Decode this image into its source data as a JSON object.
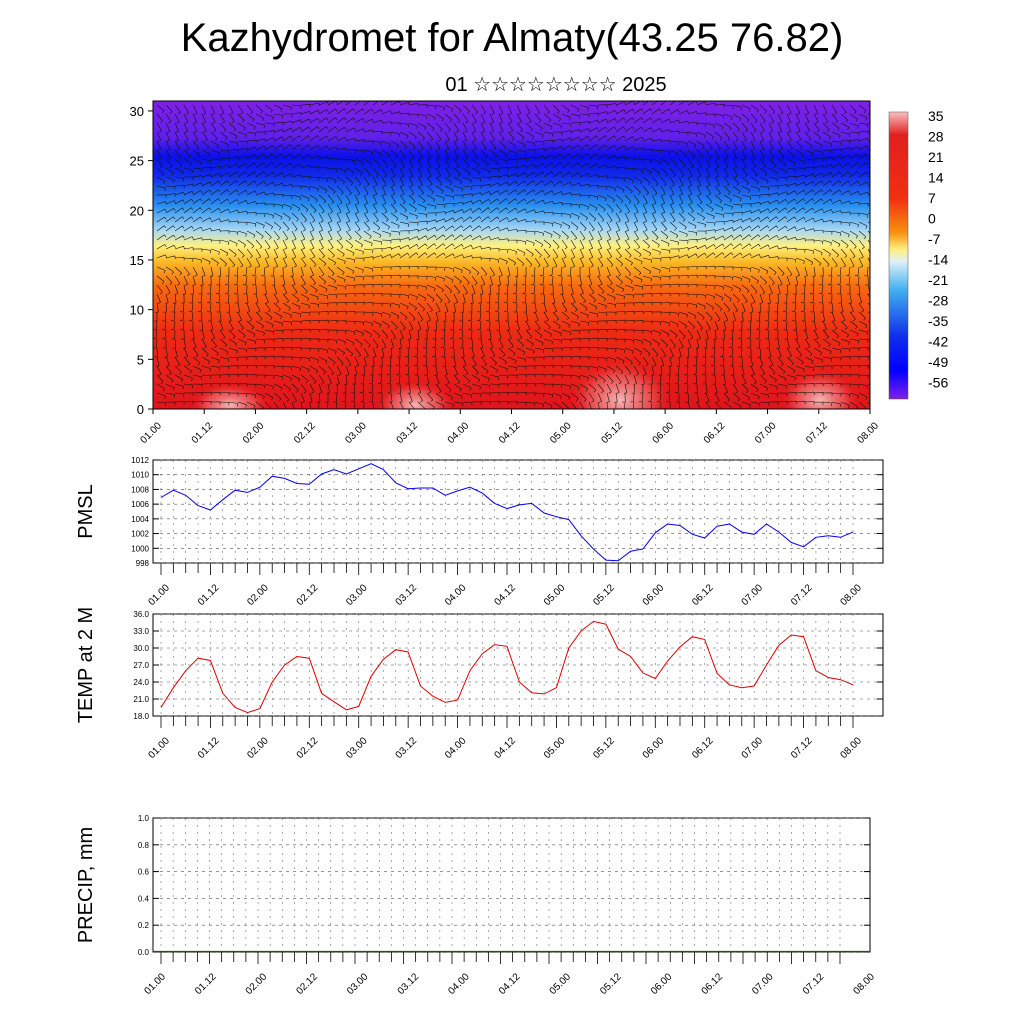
{
  "title": "Kazhydromet for Almaty(43.25 76.82)",
  "subtitle": "01 ☆☆☆☆☆☆☆☆ 2025",
  "x_tick_labels": [
    "01.00",
    "01.12",
    "02.00",
    "02.12",
    "03.00",
    "03.12",
    "04.00",
    "04.12",
    "05.00",
    "05.12",
    "06.00",
    "06.12",
    "07.00",
    "07.12",
    "08.00"
  ],
  "chart_data": [
    {
      "type": "heatmap",
      "name": "cross-section",
      "ylim": [
        0,
        31
      ],
      "y_ticks": [
        0,
        5,
        10,
        15,
        20,
        25,
        30
      ],
      "colorbar_labels": [
        "35",
        "28",
        "21",
        "14",
        "7",
        "0",
        "-7",
        "-14",
        "-21",
        "-28",
        "-35",
        "-42",
        "-49",
        "-56"
      ],
      "colors": {
        "hot": "#e0141c",
        "warm": "#f8a020",
        "yellow": "#fff080",
        "cold": "#2080f0",
        "freeze": "#0010e8",
        "top": "#8020e8"
      }
    },
    {
      "type": "line",
      "ylabel": "PMSL",
      "ylim": [
        998,
        1012
      ],
      "y_ticks": [
        "998",
        "1000",
        "1002",
        "1004",
        "1006",
        "1008",
        "1010",
        "1012"
      ],
      "color": "#0000ff",
      "values": [
        1006.9,
        1007.9,
        1007.2,
        1005.8,
        1005.2,
        1006.6,
        1007.9,
        1007.6,
        1008.3,
        1009.8,
        1009.5,
        1008.8,
        1008.7,
        1010.1,
        1010.7,
        1010.1,
        1010.8,
        1011.5,
        1010.7,
        1008.9,
        1008.1,
        1008.2,
        1008.2,
        1007.2,
        1007.8,
        1008.3,
        1007.5,
        1006.1,
        1005.4,
        1005.9,
        1006.1,
        1004.8,
        1004.3,
        1003.9,
        1001.7,
        999.9,
        998.4,
        998.3,
        999.6,
        999.9,
        1002.1,
        1003.3,
        1003.1,
        1001.9,
        1001.4,
        1003.0,
        1003.3,
        1002.2,
        1001.9,
        1003.3,
        1002.2,
        1000.8,
        1000.2,
        1001.5,
        1001.7,
        1001.5,
        1002.2
      ]
    },
    {
      "type": "line",
      "ylabel": "TEMP at 2 M",
      "ylim": [
        18,
        36
      ],
      "y_ticks": [
        "18.0",
        "21.0",
        "24.0",
        "27.0",
        "30.0",
        "33.0",
        "36.0"
      ],
      "color": "#e00000",
      "values": [
        19.5,
        23.0,
        26.0,
        28.2,
        27.8,
        22.0,
        19.5,
        18.6,
        19.3,
        24.0,
        27.0,
        28.5,
        28.2,
        22.0,
        20.5,
        19.1,
        19.7,
        25.0,
        28.0,
        29.7,
        29.3,
        23.3,
        21.5,
        20.4,
        20.8,
        26.0,
        29.0,
        30.6,
        30.3,
        24.0,
        22.1,
        21.9,
        23.0,
        30.0,
        33.0,
        34.7,
        34.2,
        29.8,
        28.5,
        25.6,
        24.6,
        27.7,
        30.2,
        32.0,
        31.5,
        25.5,
        23.5,
        23.0,
        23.3,
        27.0,
        30.5,
        32.3,
        32.0,
        26.0,
        24.8,
        24.4,
        23.5
      ]
    },
    {
      "type": "bar",
      "ylabel": "PRECIP, mm",
      "ylim": [
        0,
        1
      ],
      "y_ticks": [
        "0.0",
        "0.2",
        "0.4",
        "0.6",
        "0.8",
        "1.0"
      ],
      "color": "#006400",
      "values": [
        0,
        0,
        0,
        0,
        0,
        0,
        0,
        0,
        0,
        0,
        0,
        0,
        0,
        0,
        0,
        0,
        0,
        0,
        0,
        0,
        0,
        0,
        0,
        0,
        0,
        0,
        0,
        0,
        0,
        0,
        0,
        0,
        0,
        0,
        0,
        0,
        0,
        0,
        0,
        0,
        0,
        0,
        0,
        0,
        0,
        0,
        0,
        0,
        0,
        0,
        0,
        0,
        0,
        0,
        0,
        0,
        0
      ]
    }
  ]
}
